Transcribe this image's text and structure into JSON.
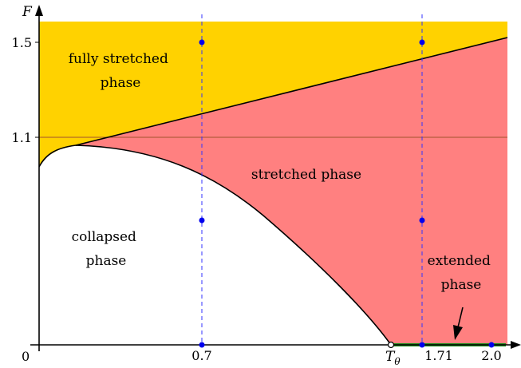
{
  "axes": {
    "y_label": "F",
    "origin_label": "0",
    "x_ticks": {
      "t1": "0.7",
      "t2": "1.71",
      "t3": "2.0"
    },
    "y_ticks": {
      "t1": "1.5",
      "t2": "1.1"
    },
    "theta_symbol": "T",
    "theta_subscript": "θ"
  },
  "regions": {
    "fully_stretched": [
      "fully stretched",
      "phase"
    ],
    "stretched": "stretched phase",
    "collapsed": [
      "collapsed",
      "phase"
    ],
    "extended": [
      "extended",
      "phase"
    ]
  },
  "colors": {
    "fully_stretched": "#FFD200",
    "stretched": "#FF8080",
    "boundary": "#000000",
    "reference_line": "#A0522D",
    "dashed_lines": "#3333FF",
    "points": "#0000EE",
    "extended_segment": "#1E8C1E"
  }
}
